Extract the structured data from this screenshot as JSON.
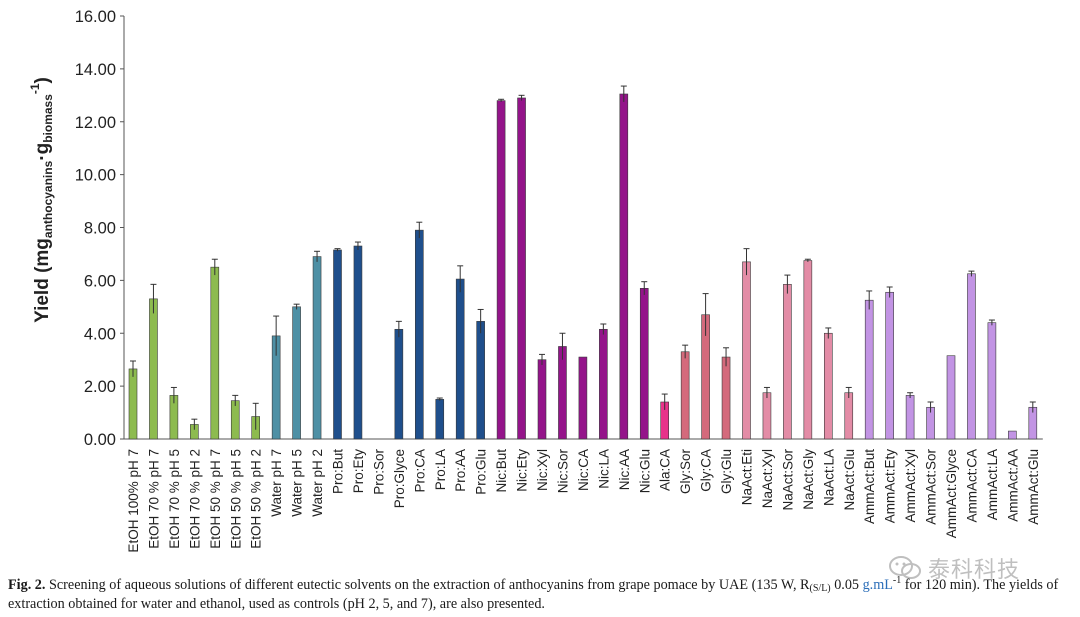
{
  "chart_data": {
    "type": "bar",
    "ylabel": "Yield (mg",
    "ylabel_sub1": "anthocyanins",
    "ylabel_mid": "·g",
    "ylabel_sub2": "biomass",
    "ylabel_sup": "-1",
    "ylabel_end": ")",
    "ylim": [
      0,
      16
    ],
    "yticks": [
      "0.00",
      "2.00",
      "4.00",
      "6.00",
      "8.00",
      "10.00",
      "12.00",
      "14.00",
      "16.00"
    ],
    "grid": false,
    "categories": [
      "EtOH 100% pH 7",
      "EtOH 70 % pH 7",
      "EtOH 70 % pH 5",
      "EtOH 70 % pH 2",
      "EtOH 50 % pH 7",
      "EtOH 50 % pH 5",
      "EtOH 50 % pH 2",
      "Water pH 7",
      "Water pH 5",
      "Water pH 2",
      "Pro:But",
      "Pro:Ety",
      "Pro:Sor",
      "Pro:Glyce",
      "Pro:CA",
      "Pro:LA",
      "Pro:AA",
      "Pro:Glu",
      "Nic:But",
      "Nic:Ety",
      "Nic:Xyl",
      "Nic:Sor",
      "Nic:CA",
      "Nic:LA",
      "Nic:AA",
      "Nic:Glu",
      "Ala:CA",
      "Gly:Sor",
      "Gly:CA",
      "Gly:Glu",
      "NaAct:Eti",
      "NaAct:Xyl",
      "NaAct:Sor",
      "NaAct:Gly",
      "NaAct:LA",
      "NaAct:Glu",
      "AmmAct:But",
      "AmmAct:Ety",
      "AmmAct:Xyl",
      "AmmAct:Sor",
      "AmmAct:Glyce",
      "AmmAct:CA",
      "AmmAct:LA",
      "AmmAct:AA",
      "AmmAct:Glu"
    ],
    "values": [
      2.65,
      5.3,
      1.65,
      0.55,
      6.5,
      1.45,
      0.85,
      3.9,
      5.0,
      6.9,
      7.15,
      7.3,
      0.0,
      4.15,
      7.9,
      1.5,
      6.05,
      4.45,
      12.8,
      12.9,
      3.0,
      3.5,
      3.1,
      4.15,
      13.05,
      5.7,
      1.4,
      3.3,
      4.7,
      3.1,
      6.7,
      1.75,
      5.85,
      6.75,
      4.0,
      1.75,
      5.25,
      5.55,
      1.65,
      1.2,
      3.15,
      6.25,
      4.4,
      0.3,
      1.2
    ],
    "errors": [
      0.3,
      0.55,
      0.3,
      0.2,
      0.3,
      0.2,
      0.5,
      0.75,
      0.1,
      0.2,
      0.05,
      0.15,
      0.0,
      0.3,
      0.3,
      0.05,
      0.5,
      0.45,
      0.05,
      0.1,
      0.2,
      0.5,
      0.0,
      0.2,
      0.3,
      0.25,
      0.3,
      0.25,
      0.8,
      0.35,
      0.5,
      0.2,
      0.35,
      0.05,
      0.2,
      0.2,
      0.35,
      0.2,
      0.1,
      0.2,
      0.0,
      0.1,
      0.1,
      0.0,
      0.2
    ],
    "groups": [
      {
        "color": "#8dbb4f",
        "count": 7
      },
      {
        "color": "#4e90a5",
        "count": 3
      },
      {
        "color": "#1f4f8c",
        "count": 8
      },
      {
        "color": "#94148a",
        "count": 8
      },
      {
        "color": "#e8338a",
        "count": 1
      },
      {
        "color": "#d46a7c",
        "count": 3
      },
      {
        "color": "#e38ca6",
        "count": 6
      },
      {
        "color": "#c294e4",
        "count": 9
      }
    ]
  },
  "caption": {
    "label": "Fig. 2.",
    "text1": " Screening of aqueous solutions of different eutectic solvents on the extraction of anthocyanins from grape pomace by UAE (135 W, R",
    "sub": "(S/L)",
    "text2": " 0.05 ",
    "link": "g.mL",
    "sup": "-1",
    "text3": " for 120 min). The yields of extraction obtained for water and ethanol, used as controls (pH 2, 5, and 7), are also presented."
  },
  "watermark": {
    "text": "泰科科技",
    "icon": "wechat-icon"
  }
}
